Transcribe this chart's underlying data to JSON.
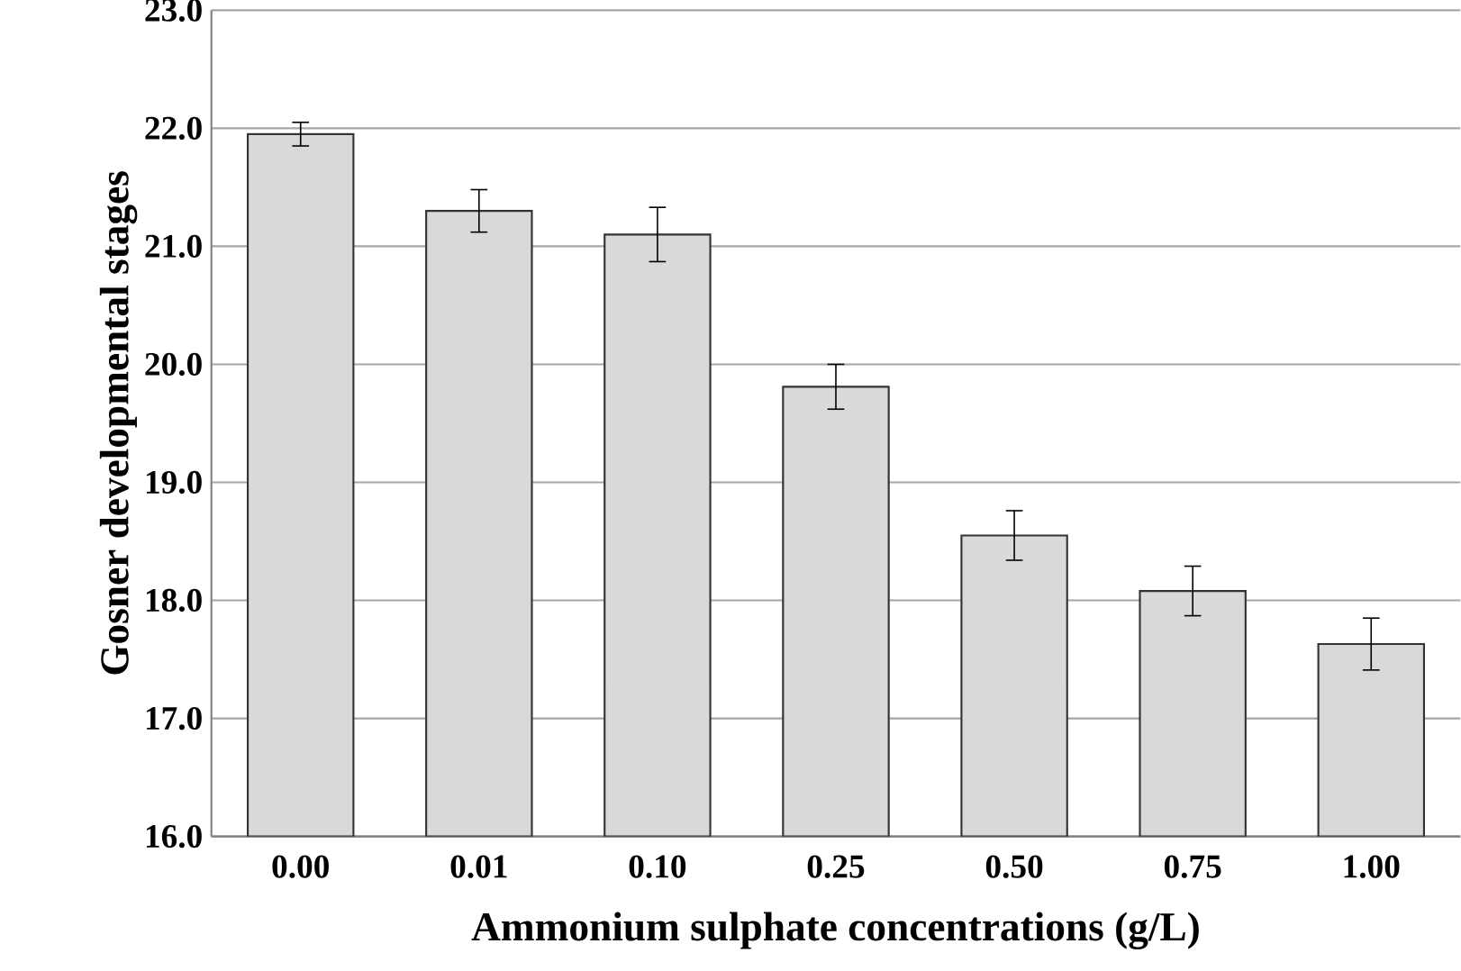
{
  "chart_data": {
    "type": "bar",
    "xlabel": "Ammonium sulphate concentrations (g/L)",
    "ylabel": "Gosner  developmental  stages",
    "categories": [
      "0.00",
      "0.01",
      "0.10",
      "0.25",
      "0.50",
      "0.75",
      "1.00"
    ],
    "values": [
      21.95,
      21.3,
      21.1,
      19.81,
      18.55,
      18.08,
      17.63
    ],
    "errors": [
      0.1,
      0.18,
      0.23,
      0.19,
      0.21,
      0.21,
      0.22
    ],
    "color": "#d9d9d9",
    "ylim": [
      16,
      23
    ],
    "yticks": [
      {
        "value": 16,
        "label": "16.0"
      },
      {
        "value": 17,
        "label": "17.0"
      },
      {
        "value": 18,
        "label": "18.0"
      },
      {
        "value": 19,
        "label": "19.0"
      },
      {
        "value": 20,
        "label": "20.0"
      },
      {
        "value": 21,
        "label": "21.0"
      },
      {
        "value": 22,
        "label": "22.0"
      },
      {
        "value": 23,
        "label": "23.0"
      }
    ],
    "grid": "y"
  }
}
